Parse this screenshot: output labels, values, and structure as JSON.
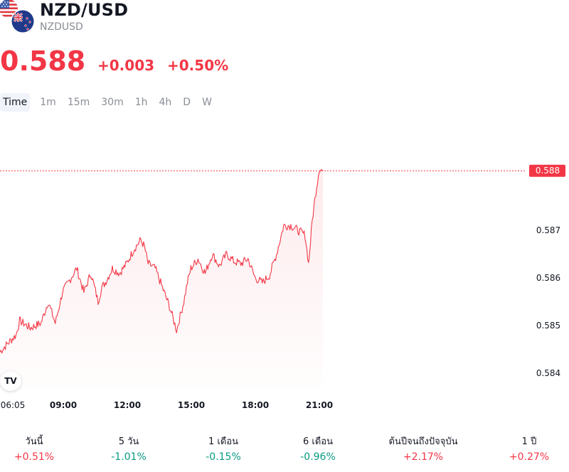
{
  "header": {
    "title": "NZD/USD",
    "symbol": "NZDUSD",
    "price": "0.588",
    "change_abs": "+0.003",
    "change_pct": "+0.50%"
  },
  "colors": {
    "down_accent": "#f23645",
    "up_accent": "#089981",
    "muted": "#8a8d96"
  },
  "tabs": [
    {
      "label": "Time",
      "active": true
    },
    {
      "label": "1m"
    },
    {
      "label": "15m"
    },
    {
      "label": "30m"
    },
    {
      "label": "1h"
    },
    {
      "label": "4h"
    },
    {
      "label": "D"
    },
    {
      "label": "W"
    }
  ],
  "chart_data": {
    "type": "area",
    "title": "",
    "xlabel": "",
    "ylabel": "",
    "x_ticks": [
      "06:05",
      "09:00",
      "12:00",
      "15:00",
      "18:00",
      "21:00"
    ],
    "y_ticks": [
      "0.584",
      "0.585",
      "0.586",
      "0.587"
    ],
    "ylim": [
      0.5837,
      0.589
    ],
    "current_price_label": "0.588",
    "grid": false,
    "series": [
      {
        "color": "#f23645",
        "x": [
          "06:05",
          "06:30",
          "06:50",
          "07:00",
          "07:30",
          "08:00",
          "08:20",
          "08:40",
          "09:00",
          "09:20",
          "09:40",
          "10:00",
          "10:20",
          "10:40",
          "10:50",
          "11:00",
          "11:20",
          "11:40",
          "12:00",
          "12:20",
          "12:40",
          "12:50",
          "13:00",
          "13:20",
          "13:40",
          "14:00",
          "14:20",
          "14:40",
          "14:50",
          "15:00",
          "15:20",
          "15:40",
          "16:00",
          "16:20",
          "16:40",
          "17:00",
          "17:20",
          "17:40",
          "18:00",
          "18:20",
          "18:40",
          "19:00",
          "19:20",
          "19:40",
          "20:00",
          "20:20",
          "20:30",
          "20:40",
          "20:50",
          "21:00",
          "21:10"
        ],
        "values": [
          0.58445,
          0.58465,
          0.5848,
          0.5851,
          0.58495,
          0.58505,
          0.5855,
          0.58505,
          0.5857,
          0.58595,
          0.5862,
          0.5857,
          0.5861,
          0.5855,
          0.5858,
          0.5859,
          0.5862,
          0.5861,
          0.5863,
          0.5866,
          0.5868,
          0.58665,
          0.5863,
          0.5862,
          0.5858,
          0.5854,
          0.5849,
          0.5855,
          0.5859,
          0.5862,
          0.5864,
          0.5861,
          0.5865,
          0.58625,
          0.5865,
          0.58635,
          0.5863,
          0.5864,
          0.586,
          0.5859,
          0.58605,
          0.5865,
          0.5871,
          0.5871,
          0.587,
          0.5869,
          0.5863,
          0.5872,
          0.5878,
          0.5883,
          0.58825
        ]
      }
    ]
  },
  "performance": [
    {
      "label": "วันนี้",
      "value": "+0.51%",
      "trend": "pos"
    },
    {
      "label": "5 วัน",
      "value": "-1.01%",
      "trend": "neg"
    },
    {
      "label": "1 เดือน",
      "value": "-0.15%",
      "trend": "neg"
    },
    {
      "label": "6 เดือน",
      "value": "-0.96%",
      "trend": "neg"
    },
    {
      "label": "ต้นปีจนถึงปัจจุบัน",
      "value": "+2.17%",
      "trend": "pos"
    },
    {
      "label": "1 ปี",
      "value": "+0.27%",
      "trend": "pos"
    }
  ]
}
